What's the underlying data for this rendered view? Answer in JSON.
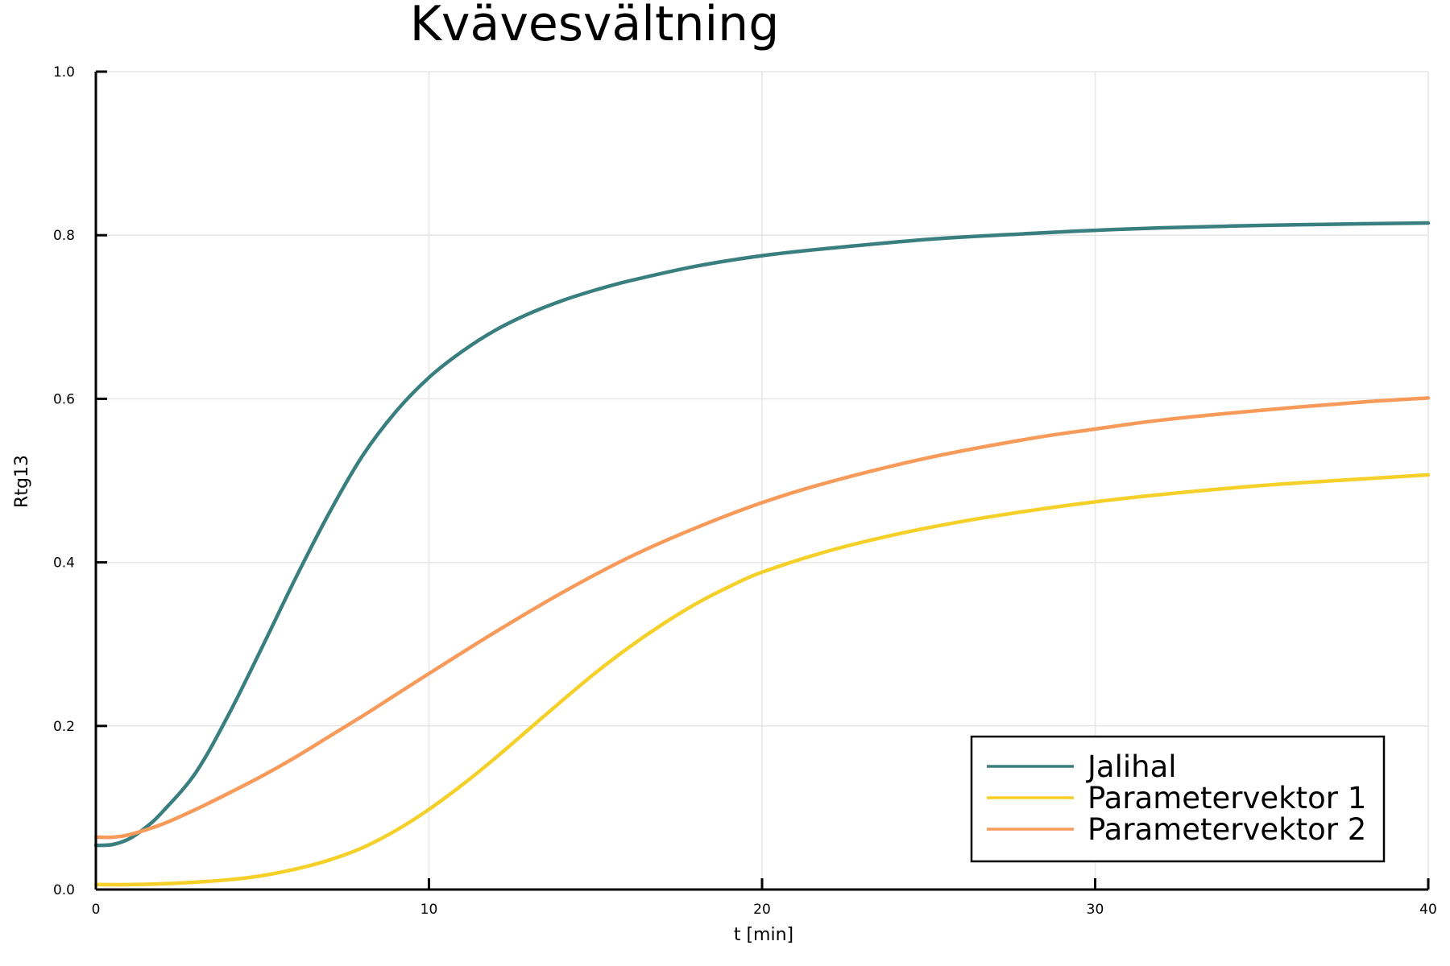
{
  "chart_data": {
    "type": "line",
    "title": "Kvävesvältning",
    "xlabel": "t [min]",
    "ylabel": "Rtg13",
    "xlim": [
      0,
      40
    ],
    "ylim": [
      0,
      1
    ],
    "xticks": [
      0,
      10,
      20,
      30,
      40
    ],
    "xtick_labels": [
      "0",
      "10",
      "20",
      "30",
      "40"
    ],
    "yticks": [
      0,
      0.2,
      0.4,
      0.6,
      0.8,
      1.0
    ],
    "ytick_labels": [
      "0.0",
      "0.2",
      "0.4",
      "0.6",
      "0.8",
      "1.0"
    ],
    "grid": true,
    "legend_position": "bottom-right",
    "series": [
      {
        "name": "Jalihal",
        "color": "#3a7f7f",
        "x": [
          0,
          0.5,
          1,
          1.5,
          2,
          3,
          4,
          5,
          6,
          7,
          8,
          9,
          10,
          11,
          12,
          13,
          14,
          15,
          16,
          18,
          20,
          22,
          25,
          28,
          30,
          32,
          35,
          38,
          40
        ],
        "y": [
          0.054,
          0.055,
          0.062,
          0.076,
          0.095,
          0.143,
          0.215,
          0.297,
          0.381,
          0.46,
          0.53,
          0.584,
          0.626,
          0.658,
          0.684,
          0.704,
          0.72,
          0.733,
          0.744,
          0.762,
          0.775,
          0.784,
          0.795,
          0.802,
          0.806,
          0.809,
          0.812,
          0.814,
          0.815
        ]
      },
      {
        "name": "Parametervektor 1",
        "color": "#f5d028",
        "x": [
          0,
          1,
          2,
          3,
          4,
          5,
          6,
          7,
          8,
          9,
          10,
          11,
          12,
          13,
          14,
          15,
          16,
          17,
          18,
          19,
          20,
          22,
          24,
          26,
          28,
          30,
          32,
          35,
          38,
          40
        ],
        "y": [
          0.006,
          0.006,
          0.007,
          0.009,
          0.012,
          0.017,
          0.025,
          0.036,
          0.051,
          0.072,
          0.098,
          0.128,
          0.161,
          0.196,
          0.231,
          0.265,
          0.296,
          0.324,
          0.349,
          0.37,
          0.388,
          0.414,
          0.434,
          0.45,
          0.463,
          0.474,
          0.483,
          0.494,
          0.502,
          0.507
        ]
      },
      {
        "name": "Parametervektor 2",
        "color": "#f89a5a",
        "x": [
          0,
          0.5,
          1,
          2,
          3,
          4,
          5,
          6,
          7,
          8,
          9,
          10,
          12,
          14,
          16,
          18,
          20,
          22,
          25,
          28,
          30,
          32,
          35,
          38,
          40
        ],
        "y": [
          0.064,
          0.064,
          0.067,
          0.08,
          0.098,
          0.118,
          0.139,
          0.162,
          0.187,
          0.212,
          0.238,
          0.264,
          0.315,
          0.363,
          0.406,
          0.442,
          0.473,
          0.498,
          0.528,
          0.551,
          0.563,
          0.574,
          0.586,
          0.596,
          0.601
        ]
      }
    ]
  }
}
